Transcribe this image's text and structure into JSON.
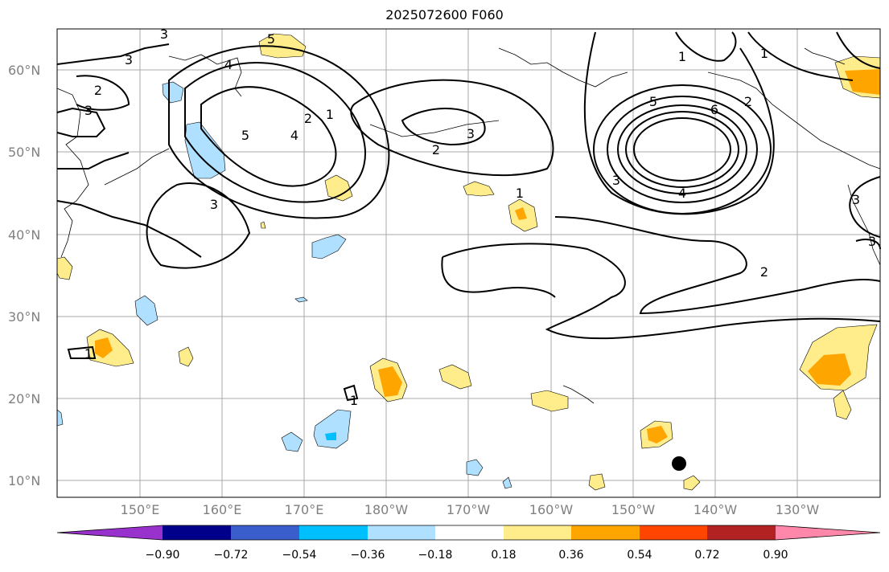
{
  "title": "2025072600 F060",
  "lat_labels": [
    "60°N",
    "50°N",
    "40°N",
    "30°N",
    "20°N",
    "10°N"
  ],
  "lon_labels": [
    "150°E",
    "160°E",
    "170°E",
    "180°W",
    "170°W",
    "160°W",
    "150°W",
    "140°W",
    "130°W"
  ],
  "colorbar": {
    "ticks": [
      "−0.90",
      "−0.72",
      "−0.54",
      "−0.36",
      "−0.18",
      "0.18",
      "0.36",
      "0.54",
      "0.72",
      "0.90"
    ],
    "colors": [
      "#9932cc",
      "#00008b",
      "#3a5fcd",
      "#00bfff",
      "#b0e0ff",
      "#ffffff",
      "#ffec8b",
      "#ffa500",
      "#ff4500",
      "#b22222",
      "#ff88aa"
    ]
  },
  "contour_labels": [
    "3",
    "5",
    "3",
    "2",
    "3",
    "4",
    "5",
    "2",
    "1",
    "4",
    "3",
    "2",
    "3",
    "1",
    "5",
    "6",
    "2",
    "1",
    "3",
    "4",
    "1",
    "2",
    "3",
    "3",
    "1",
    "1"
  ],
  "colors": {
    "contour": "#000000",
    "positive": "#ffec8b",
    "positive_strong": "#ffa500",
    "negative": "#b0e0ff",
    "negative_strong": "#00bfff",
    "grid": "#a0a0a0"
  },
  "marker": "storm-center-dot"
}
